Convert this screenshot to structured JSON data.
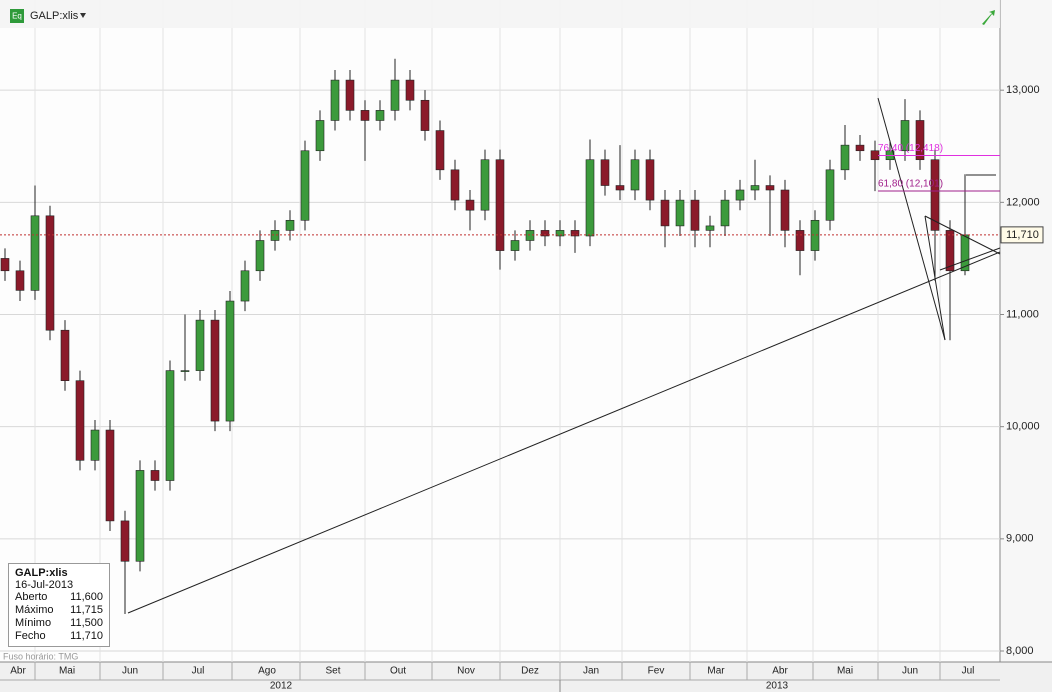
{
  "header": {
    "symbol": "GALP:xlis"
  },
  "chart_data": {
    "type": "candlestick",
    "ylim": [
      7902,
      13804
    ],
    "yticks": [
      {
        "value": 8000,
        "label": "8,000"
      },
      {
        "value": 9000,
        "label": "9,000"
      },
      {
        "value": 10000,
        "label": "10,000"
      },
      {
        "value": 11000,
        "label": "11,000"
      },
      {
        "value": 12000,
        "label": "12,000"
      },
      {
        "value": 13000,
        "label": "13,000"
      }
    ],
    "months": [
      "Abr",
      "Mai",
      "Jun",
      "Jul",
      "Ago",
      "Set",
      "Out",
      "Nov",
      "Dez",
      "Jan",
      "Fev",
      "Mar",
      "Abr",
      "Mai",
      "Jun",
      "Jul"
    ],
    "years": [
      "2012",
      "2013"
    ],
    "open": [
      11500,
      11390,
      11215,
      11880,
      10860,
      10410,
      9700,
      9970,
      9160,
      8800,
      9610,
      9520,
      10500,
      10500,
      10950,
      10050,
      11120,
      11390,
      11660,
      11750,
      11840,
      12460,
      12730,
      13090,
      12820,
      12730,
      12820,
      13090,
      12910,
      12640,
      12290,
      12020,
      11930,
      12380,
      11570,
      11660,
      11750,
      11700,
      11750,
      11700,
      12380,
      12150,
      12110,
      12380,
      12020,
      11790,
      12020,
      11750,
      11790,
      12020,
      12110,
      12150,
      12110,
      11750,
      11570,
      11840,
      12290,
      12510,
      12460,
      12380,
      12460,
      12730,
      12380,
      11750,
      11390
    ],
    "high": [
      11590,
      11480,
      12150,
      11970,
      10950,
      10500,
      10060,
      10060,
      9250,
      9700,
      9700,
      10590,
      11000,
      11040,
      11040,
      11210,
      11480,
      11750,
      11840,
      11930,
      12550,
      12820,
      13180,
      13180,
      12910,
      12910,
      13280,
      13180,
      13000,
      12730,
      12380,
      12110,
      12470,
      12470,
      11750,
      11840,
      11840,
      11840,
      11840,
      12560,
      12470,
      12510,
      12470,
      12470,
      12110,
      12110,
      12110,
      11880,
      12110,
      12200,
      12380,
      12240,
      12200,
      11840,
      11930,
      12380,
      12690,
      12600,
      12550,
      12550,
      12920,
      12820,
      12470,
      11840,
      12250
    ],
    "low": [
      11300,
      11120,
      11130,
      10770,
      10320,
      9610,
      9610,
      9070,
      8330,
      8710,
      9430,
      9430,
      10410,
      10410,
      9960,
      9960,
      11030,
      11300,
      11570,
      11660,
      11750,
      12370,
      12640,
      12730,
      12370,
      12640,
      12730,
      12820,
      12550,
      12200,
      11930,
      11750,
      11840,
      11400,
      11480,
      11570,
      11610,
      11610,
      11550,
      11610,
      12060,
      12020,
      12020,
      11930,
      11600,
      11700,
      11600,
      11600,
      11700,
      11930,
      12020,
      11700,
      11600,
      11350,
      11480,
      11750,
      12200,
      12370,
      12100,
      12290,
      12370,
      12290,
      11300,
      10770,
      11350
    ],
    "close": [
      11390,
      11215,
      11880,
      10860,
      10410,
      9700,
      9970,
      9160,
      8800,
      9610,
      9520,
      10500,
      10500,
      10950,
      10050,
      11120,
      11390,
      11660,
      11750,
      11840,
      12460,
      12730,
      13090,
      12820,
      12730,
      12820,
      13090,
      12910,
      12640,
      12290,
      12020,
      11930,
      12380,
      11570,
      11660,
      11750,
      11700,
      11750,
      11700,
      12380,
      12150,
      12110,
      12380,
      12020,
      11790,
      12020,
      11750,
      11790,
      12020,
      12110,
      12150,
      12110,
      11750,
      11570,
      11840,
      12290,
      12510,
      12460,
      12380,
      12460,
      12730,
      12380,
      11750,
      11390,
      11710
    ],
    "colors": {
      "up": "#3c9a3c",
      "down": "#8b1a2a"
    },
    "grid": true,
    "last_price": {
      "value": 11710,
      "label": "11,710"
    },
    "fib_levels": [
      {
        "value": 12418,
        "label": "76,40 (12,418)",
        "color": "#e030e0"
      },
      {
        "value": 12101,
        "label": "61,80 (12,101)",
        "color": "#a0208a"
      }
    ]
  },
  "info_box": {
    "symbol": "GALP:xlis",
    "date": "16-Jul-2013",
    "rows": [
      [
        "Aberto",
        "11,600"
      ],
      [
        "Máximo",
        "11,715"
      ],
      [
        "Mínimo",
        "11,500"
      ],
      [
        "Fecho",
        "11,710"
      ]
    ]
  },
  "timezone": "Fuso horário: TMG"
}
